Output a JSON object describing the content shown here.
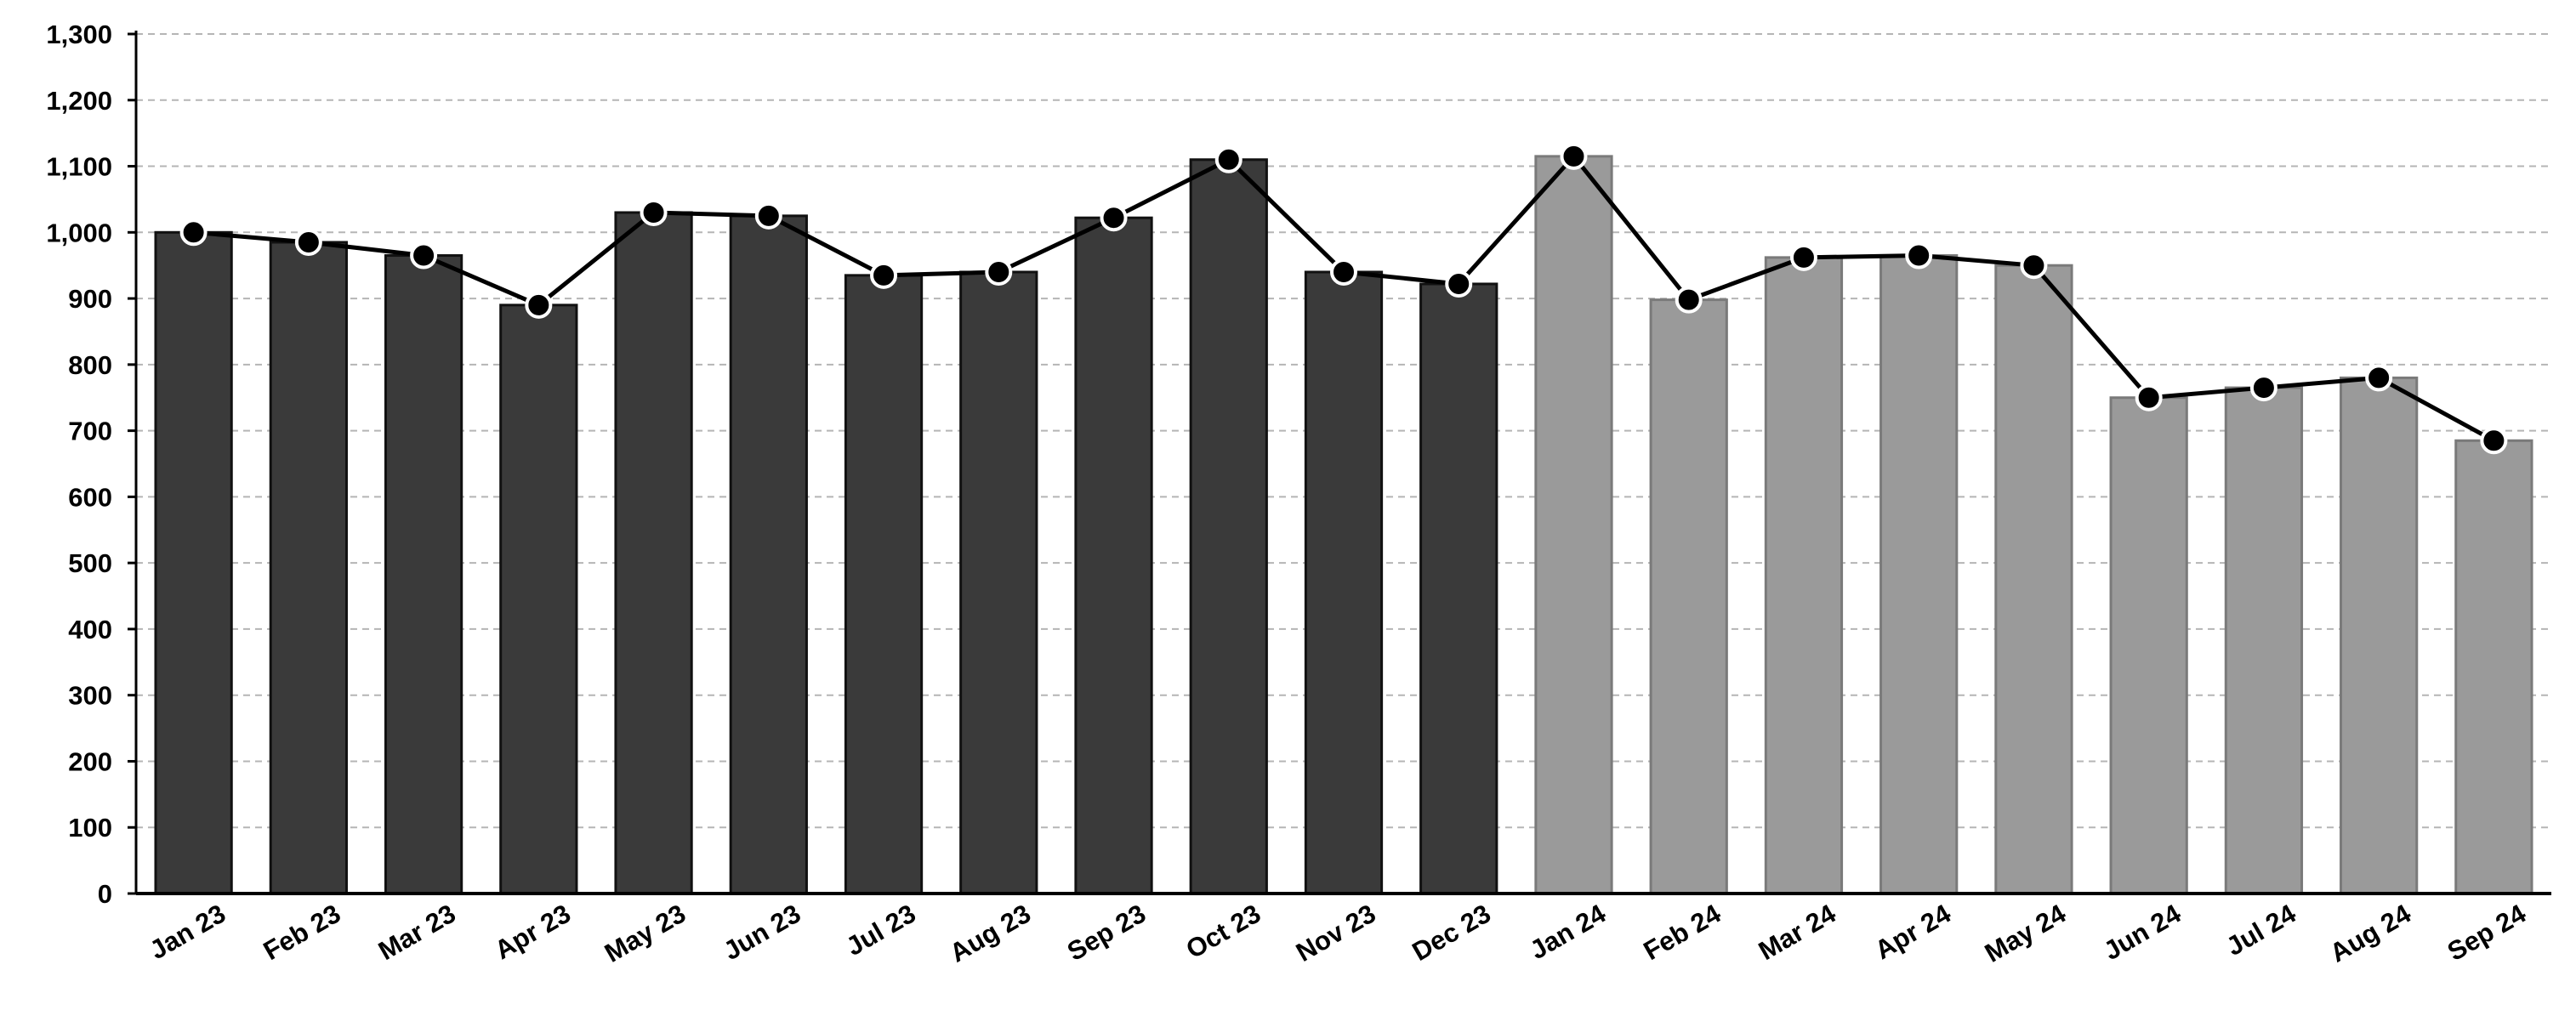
{
  "chart_data": {
    "type": "bar",
    "categories": [
      "Jan 23",
      "Feb 23",
      "Mar 23",
      "Apr 23",
      "May 23",
      "Jun 23",
      "Jul 23",
      "Aug 23",
      "Sep 23",
      "Oct 23",
      "Nov 23",
      "Dec 23",
      "Jan 24",
      "Feb 24",
      "Mar 24",
      "Apr 24",
      "May 24",
      "Jun 24",
      "Jul 24",
      "Aug 24",
      "Sep 24"
    ],
    "series": [
      {
        "type": "bar",
        "values": [
          1000,
          985,
          965,
          890,
          1030,
          1025,
          935,
          940,
          1022,
          1110,
          940,
          922,
          1115,
          898,
          962,
          965,
          950,
          750,
          765,
          780,
          685
        ],
        "colors": [
          "#3a3a3a",
          "#3a3a3a",
          "#3a3a3a",
          "#3a3a3a",
          "#3a3a3a",
          "#3a3a3a",
          "#3a3a3a",
          "#3a3a3a",
          "#3a3a3a",
          "#3a3a3a",
          "#3a3a3a",
          "#3a3a3a",
          "#9a9a9a",
          "#9a9a9a",
          "#9a9a9a",
          "#9a9a9a",
          "#9a9a9a",
          "#9a9a9a",
          "#9a9a9a",
          "#9a9a9a",
          "#9a9a9a"
        ]
      },
      {
        "type": "line",
        "values": [
          1000,
          985,
          965,
          890,
          1030,
          1025,
          935,
          940,
          1022,
          1110,
          940,
          922,
          1115,
          898,
          962,
          965,
          950,
          750,
          765,
          780,
          685
        ],
        "color": "#000000"
      }
    ],
    "yticks": [
      "0",
      "100",
      "200",
      "300",
      "400",
      "500",
      "600",
      "700",
      "800",
      "900",
      "1,000",
      "1,100",
      "1,200",
      "1,300"
    ],
    "ylim": [
      0,
      1300
    ],
    "grid": true,
    "title": "",
    "xlabel": "",
    "ylabel": ""
  }
}
